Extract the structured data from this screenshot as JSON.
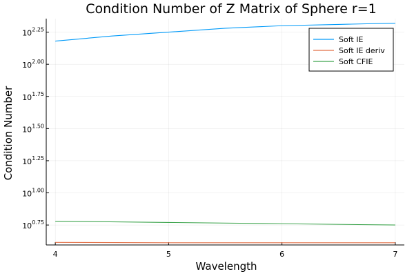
{
  "chart_data": {
    "type": "line",
    "title": "Condition Number of Z Matrix of Sphere r=1",
    "xlabel": "Wavelength",
    "ylabel": "Condition Number",
    "yscale": "log10",
    "xlim": [
      3.92,
      7.08
    ],
    "ylim": [
      0.595,
      2.355
    ],
    "x_ticks": [
      4,
      5,
      6,
      7
    ],
    "x_tick_labels": [
      "4",
      "5",
      "6",
      "7"
    ],
    "y_ticks": [
      {
        "value": 0.75,
        "base": "10",
        "exp": "0.75"
      },
      {
        "value": 1.0,
        "base": "10",
        "exp": "1.00"
      },
      {
        "value": 1.25,
        "base": "10",
        "exp": "1.25"
      },
      {
        "value": 1.5,
        "base": "10",
        "exp": "1.50"
      },
      {
        "value": 1.75,
        "base": "10",
        "exp": "1.75"
      },
      {
        "value": 2.0,
        "base": "10",
        "exp": "2.00"
      },
      {
        "value": 2.25,
        "base": "10",
        "exp": "2.25"
      }
    ],
    "grid": true,
    "legend_position": "top-right",
    "series": [
      {
        "name": "Soft IE",
        "color": "#009af9",
        "x": [
          4.0,
          4.5,
          5.0,
          5.5,
          6.0,
          6.5,
          7.0
        ],
        "y": [
          2.18,
          2.22,
          2.25,
          2.28,
          2.3,
          2.31,
          2.32
        ]
      },
      {
        "name": "Soft IE deriv",
        "color": "#e26f46",
        "x": [
          4.0,
          5.0,
          6.0,
          7.0
        ],
        "y": [
          0.615,
          0.612,
          0.612,
          0.612
        ]
      },
      {
        "name": "Soft CFIE",
        "color": "#3da44d",
        "x": [
          4.0,
          5.0,
          6.0,
          7.0
        ],
        "y": [
          0.78,
          0.77,
          0.76,
          0.75
        ]
      }
    ]
  }
}
